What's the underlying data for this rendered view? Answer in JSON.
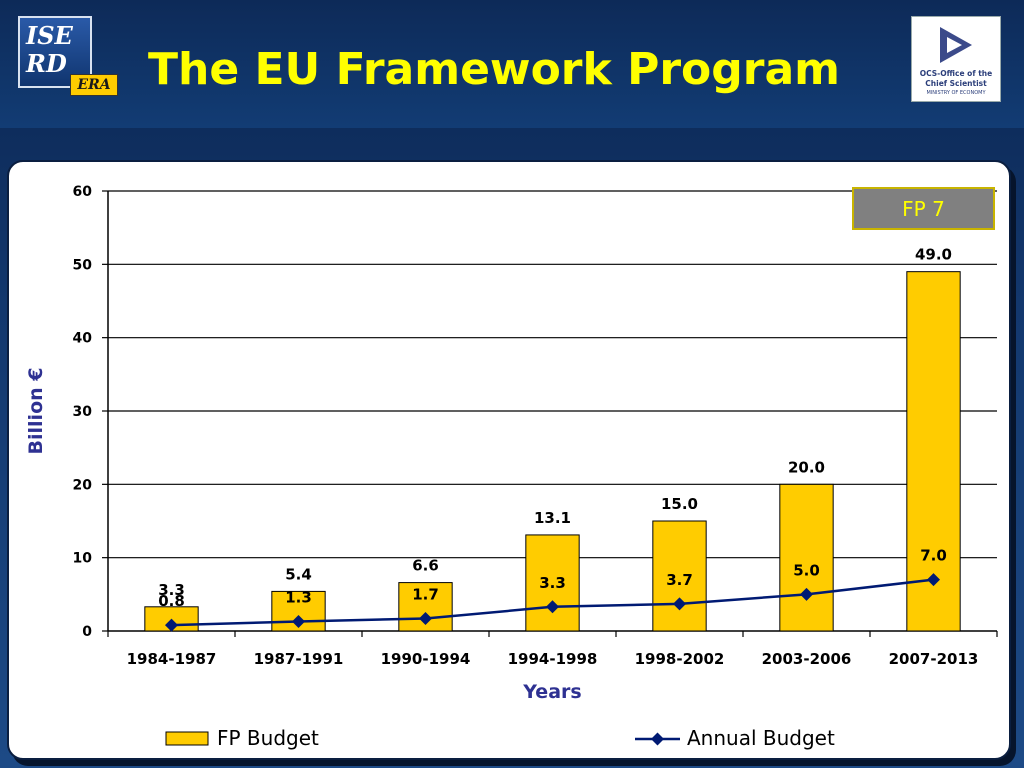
{
  "header": {
    "title": "The EU Framework Program",
    "logo_left": {
      "line1": "ISE",
      "line2": "RD",
      "badge": "ERA"
    },
    "logo_right": {
      "line1": "OCS-Office of the",
      "line2": "Chief Scientist",
      "line3": "MINISTRY OF ECONOMY"
    }
  },
  "colors": {
    "title": "#ffff00",
    "bar_fill": "#ffcc00",
    "line": "#001a73",
    "axis_label": "#2e3192",
    "fp7_box": "#808080",
    "fp7_text": "#ffff00"
  },
  "chart_data": {
    "type": "bar",
    "categories": [
      "1984-1987",
      "1987-1991",
      "1990-1994",
      "1994-1998",
      "1998-2002",
      "2003-2006",
      "2007-2013"
    ],
    "series": [
      {
        "name": "FP Budget",
        "type": "bar",
        "values": [
          3.3,
          5.4,
          6.6,
          13.1,
          15.0,
          20.0,
          49.0
        ],
        "labels": [
          "3.3",
          "5.4",
          "6.6",
          "13.1",
          "15.0",
          "20.0",
          "49.0"
        ]
      },
      {
        "name": "Annual Budget",
        "type": "line",
        "values": [
          0.8,
          1.3,
          1.7,
          3.3,
          3.7,
          5.0,
          7.0
        ],
        "labels": [
          "0.8",
          "1.3",
          "1.7",
          "3.3",
          "3.7",
          "5.0",
          "7.0"
        ]
      }
    ],
    "xlabel": "Years",
    "ylabel": "Billion €",
    "ylim": [
      0,
      60
    ],
    "yticks": [
      "0",
      "10",
      "20",
      "30",
      "40",
      "50",
      "60"
    ],
    "grid": true,
    "legend_position": "bottom",
    "annotation": "FP 7"
  }
}
